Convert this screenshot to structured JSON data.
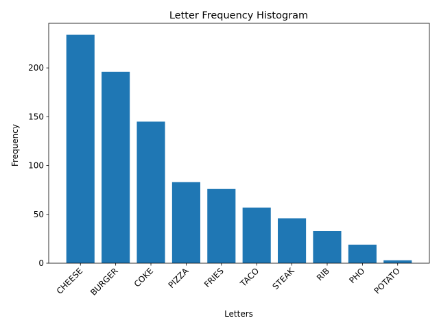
{
  "chart_data": {
    "type": "bar",
    "title": "Letter Frequency Histogram",
    "xlabel": "Letters",
    "ylabel": "Frequency",
    "categories": [
      "CHEESE",
      "BURGER",
      "COKE",
      "PIZZA",
      "FRIES",
      "TACO",
      "STEAK",
      "RIB",
      "PHO",
      "POTATO"
    ],
    "values": [
      234,
      196,
      145,
      83,
      76,
      57,
      46,
      33,
      19,
      3
    ],
    "yticks": [
      0,
      50,
      100,
      150,
      200
    ],
    "ylim": [
      0,
      245.7
    ],
    "bar_color": "#1f77b4",
    "grid": false,
    "legend": "none",
    "xtick_rotation": "45 degrees"
  }
}
